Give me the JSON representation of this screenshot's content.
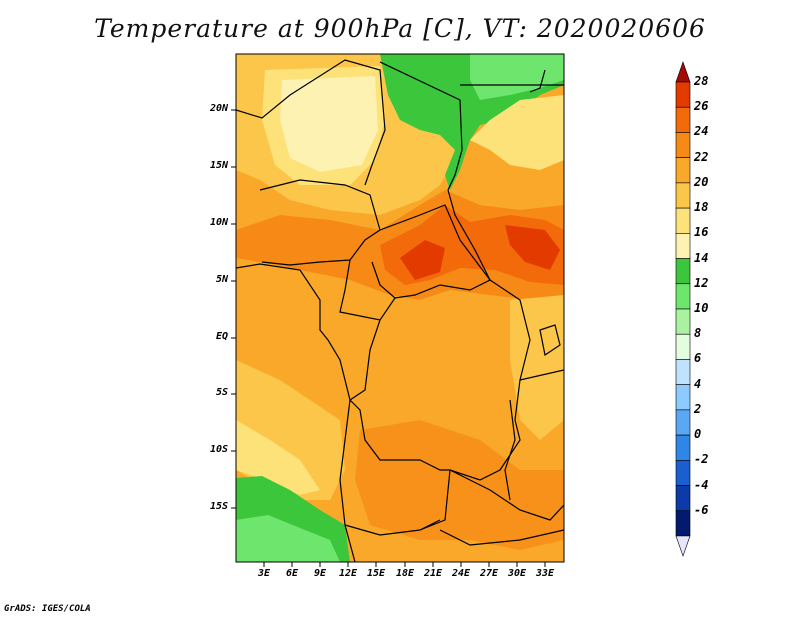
{
  "title": "Temperature at 900hPa [C], VT: 2020020606",
  "credit": "GrADS: IGES/COLA",
  "map": {
    "field": "temperature",
    "level_hpa": 900,
    "units": "C",
    "valid_time": "2020020606",
    "lon_range": [
      0,
      35
    ],
    "lat_range": [
      -20,
      25
    ],
    "lat_ticks": [
      "20N",
      "15N",
      "10N",
      "5N",
      "EQ",
      "5S",
      "10S",
      "15S"
    ],
    "lon_ticks": [
      "3E",
      "6E",
      "9E",
      "12E",
      "15E",
      "18E",
      "21E",
      "24E",
      "27E",
      "30E",
      "33E"
    ]
  },
  "colorbar": {
    "labels": [
      "28",
      "26",
      "24",
      "22",
      "20",
      "18",
      "16",
      "14",
      "12",
      "10",
      "8",
      "6",
      "4",
      "2",
      "0",
      "-2",
      "-4",
      "-6"
    ],
    "colors": [
      "#a50a0a",
      "#e33a00",
      "#f36a0a",
      "#f78a16",
      "#f9a82a",
      "#fbc64a",
      "#fde27a",
      "#fdf2b2",
      "#3cc63c",
      "#6ee66e",
      "#a8f2a0",
      "#e4fce0",
      "#bfe2ff",
      "#8ccaff",
      "#5aa8f5",
      "#2f86e6",
      "#1a5fcf",
      "#0c3aa8",
      "#041a6e",
      "#e6e6fb"
    ]
  }
}
